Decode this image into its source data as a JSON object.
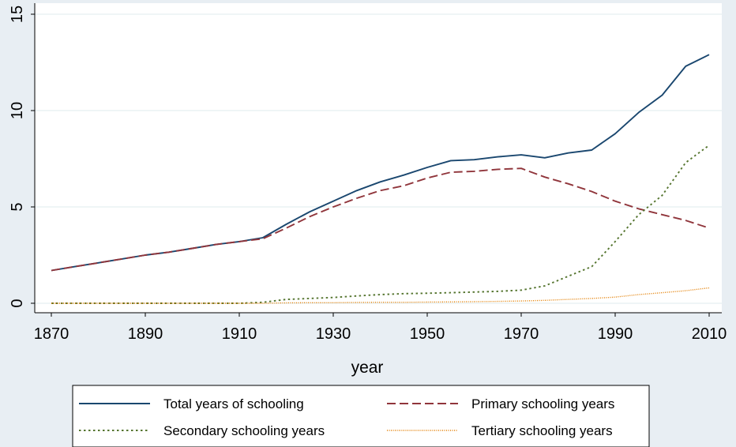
{
  "chart_data": {
    "type": "line",
    "title": "",
    "xlabel": "year",
    "ylabel": "",
    "xlim": [
      1868,
      2011
    ],
    "ylim": [
      -0.5,
      15.5
    ],
    "xticks": [
      "1870",
      "1890",
      "1910",
      "1930",
      "1950",
      "1970",
      "1990",
      "2010"
    ],
    "yticks": [
      "0",
      "5",
      "10",
      "15"
    ],
    "grid": true,
    "legend_position": "bottom",
    "x": [
      1870,
      1875,
      1880,
      1885,
      1890,
      1895,
      1900,
      1905,
      1910,
      1915,
      1920,
      1925,
      1930,
      1935,
      1940,
      1945,
      1950,
      1955,
      1960,
      1965,
      1970,
      1975,
      1980,
      1985,
      1990,
      1995,
      2000,
      2005,
      2010
    ],
    "series": [
      {
        "name": "Total years of schooling",
        "color": "#1a476f",
        "dash": "solid",
        "values": [
          1.7,
          1.9,
          2.1,
          2.3,
          2.5,
          2.65,
          2.85,
          3.05,
          3.2,
          3.4,
          4.1,
          4.75,
          5.3,
          5.85,
          6.3,
          6.65,
          7.05,
          7.4,
          7.45,
          7.6,
          7.7,
          7.55,
          7.8,
          7.95,
          8.8,
          9.9,
          10.8,
          12.3,
          12.9
        ]
      },
      {
        "name": "Primary schooling years",
        "color": "#90353b",
        "dash": "dash",
        "values": [
          1.7,
          1.9,
          2.1,
          2.3,
          2.5,
          2.65,
          2.85,
          3.05,
          3.2,
          3.35,
          3.9,
          4.5,
          5.0,
          5.45,
          5.85,
          6.1,
          6.5,
          6.8,
          6.85,
          6.95,
          7.0,
          6.55,
          6.2,
          5.8,
          5.3,
          4.9,
          4.6,
          4.3,
          3.9
        ]
      },
      {
        "name": "Secondary schooling years",
        "color": "#55752f",
        "dash": "dot",
        "values": [
          0.0,
          0.0,
          0.0,
          0.0,
          0.0,
          0.0,
          0.0,
          0.0,
          0.0,
          0.05,
          0.2,
          0.25,
          0.3,
          0.38,
          0.45,
          0.5,
          0.52,
          0.55,
          0.58,
          0.62,
          0.68,
          0.9,
          1.4,
          1.9,
          3.2,
          4.6,
          5.6,
          7.3,
          8.2
        ]
      },
      {
        "name": "Tertiary schooling years",
        "color": "#e37e00",
        "dash": "fine-dot",
        "values": [
          0.0,
          0.0,
          0.0,
          0.0,
          0.0,
          0.0,
          0.0,
          0.0,
          0.0,
          0.0,
          0.02,
          0.03,
          0.03,
          0.04,
          0.05,
          0.05,
          0.06,
          0.07,
          0.08,
          0.1,
          0.12,
          0.15,
          0.2,
          0.25,
          0.32,
          0.45,
          0.55,
          0.65,
          0.8
        ]
      }
    ]
  }
}
